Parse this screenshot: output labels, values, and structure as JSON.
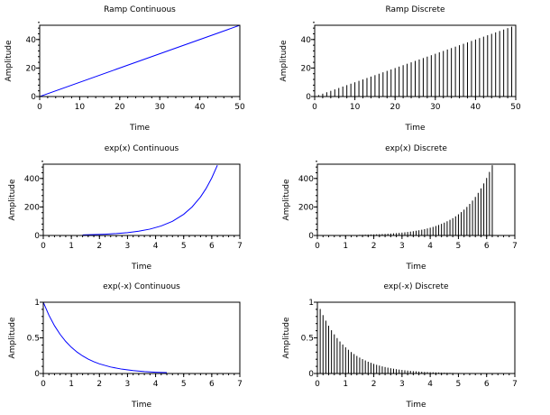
{
  "chart_data": [
    {
      "type": "line",
      "title": "Ramp Continuous",
      "xlabel": "Time",
      "ylabel": "Amplitude",
      "xlim": [
        0,
        50
      ],
      "ylim": [
        0,
        50
      ],
      "xticks": [
        0,
        10,
        20,
        30,
        40,
        50
      ],
      "yticks": [
        0,
        20,
        40
      ],
      "minor_x_step": 2,
      "minor_y_step": 4,
      "grid": false,
      "series": [
        {
          "color": "#0000ff",
          "x": [
            0,
            50
          ],
          "y": [
            0,
            50
          ]
        }
      ]
    },
    {
      "type": "stem",
      "title": "Ramp Discrete",
      "xlabel": "Time",
      "ylabel": "Amplitude",
      "xlim": [
        0,
        50
      ],
      "ylim": [
        0,
        50
      ],
      "xticks": [
        0,
        10,
        20,
        30,
        40,
        50
      ],
      "yticks": [
        0,
        20,
        40
      ],
      "minor_x_step": 2,
      "minor_y_step": 4,
      "grid": false,
      "series": [
        {
          "color": "#000000",
          "x": [
            0,
            1,
            2,
            3,
            4,
            5,
            6,
            7,
            8,
            9,
            10,
            11,
            12,
            13,
            14,
            15,
            16,
            17,
            18,
            19,
            20,
            21,
            22,
            23,
            24,
            25,
            26,
            27,
            28,
            29,
            30,
            31,
            32,
            33,
            34,
            35,
            36,
            37,
            38,
            39,
            40,
            41,
            42,
            43,
            44,
            45,
            46,
            47,
            48,
            49,
            50
          ],
          "y": [
            0,
            1,
            2,
            3,
            4,
            5,
            6,
            7,
            8,
            9,
            10,
            11,
            12,
            13,
            14,
            15,
            16,
            17,
            18,
            19,
            20,
            21,
            22,
            23,
            24,
            25,
            26,
            27,
            28,
            29,
            30,
            31,
            32,
            33,
            34,
            35,
            36,
            37,
            38,
            39,
            40,
            41,
            42,
            43,
            44,
            45,
            46,
            47,
            48,
            49,
            50
          ]
        }
      ]
    },
    {
      "type": "line",
      "title": "exp(x) Continuous",
      "xlabel": "Time",
      "ylabel": "Amplitude",
      "xlim": [
        0,
        7
      ],
      "ylim": [
        0,
        500
      ],
      "xticks": [
        0,
        1,
        2,
        3,
        4,
        5,
        6,
        7
      ],
      "yticks": [
        0,
        200,
        400
      ],
      "minor_x_step": 0.2,
      "minor_y_step": 40,
      "grid": false,
      "series": [
        {
          "color": "#0000ff",
          "x": [
            1.4,
            1.8,
            2.2,
            2.6,
            3.0,
            3.4,
            3.8,
            4.2,
            4.6,
            5.0,
            5.3,
            5.6,
            5.8,
            6.0,
            6.2
          ],
          "y": [
            4.1,
            6.0,
            9.0,
            13.5,
            20.1,
            30.0,
            44.7,
            66.7,
            99.5,
            148.4,
            200.3,
            270.4,
            330.3,
            403.4,
            492.7
          ]
        }
      ]
    },
    {
      "type": "stem",
      "title": "exp(x) Discrete",
      "xlabel": "Time",
      "ylabel": "Amplitude",
      "xlim": [
        0,
        7
      ],
      "ylim": [
        0,
        500
      ],
      "xticks": [
        0,
        1,
        2,
        3,
        4,
        5,
        6,
        7
      ],
      "yticks": [
        0,
        200,
        400
      ],
      "minor_x_step": 0.2,
      "minor_y_step": 40,
      "grid": false,
      "series": [
        {
          "color": "#000000",
          "x": [
            1.5,
            1.6,
            1.7,
            1.8,
            1.9,
            2.0,
            2.1,
            2.2,
            2.3,
            2.4,
            2.5,
            2.6,
            2.7,
            2.8,
            2.9,
            3.0,
            3.1,
            3.2,
            3.3,
            3.4,
            3.5,
            3.6,
            3.7,
            3.8,
            3.9,
            4.0,
            4.1,
            4.2,
            4.3,
            4.4,
            4.5,
            4.6,
            4.7,
            4.8,
            4.9,
            5.0,
            5.1,
            5.2,
            5.3,
            5.4,
            5.5,
            5.6,
            5.7,
            5.8,
            5.9,
            6.0,
            6.1,
            6.2
          ],
          "y": [
            4.5,
            5.0,
            5.5,
            6.0,
            6.7,
            7.4,
            8.2,
            9.0,
            10.0,
            11.0,
            12.2,
            13.5,
            14.9,
            16.4,
            18.2,
            20.1,
            22.2,
            24.5,
            27.1,
            30.0,
            33.1,
            36.6,
            40.4,
            44.7,
            49.4,
            54.6,
            60.3,
            66.7,
            73.7,
            81.5,
            90.0,
            99.5,
            110.0,
            121.5,
            134.3,
            148.4,
            164.0,
            181.3,
            200.3,
            221.4,
            244.7,
            270.4,
            298.9,
            330.3,
            365.0,
            403.4,
            445.9,
            492.7
          ]
        }
      ]
    },
    {
      "type": "line",
      "title": "exp(-x) Continuous",
      "xlabel": "Time",
      "ylabel": "Amplitude",
      "xlim": [
        0,
        7
      ],
      "ylim": [
        0,
        1
      ],
      "xticks": [
        0,
        1,
        2,
        3,
        4,
        5,
        6,
        7
      ],
      "yticks": [
        0,
        0.5,
        1
      ],
      "minor_x_step": 0.2,
      "minor_y_step": 0.1,
      "grid": false,
      "series": [
        {
          "color": "#0000ff",
          "x": [
            0,
            0.2,
            0.4,
            0.6,
            0.8,
            1.0,
            1.2,
            1.4,
            1.6,
            1.8,
            2.0,
            2.4,
            2.8,
            3.2,
            3.6,
            4.0,
            4.4
          ],
          "y": [
            1.0,
            0.819,
            0.67,
            0.549,
            0.449,
            0.368,
            0.301,
            0.247,
            0.202,
            0.165,
            0.135,
            0.091,
            0.061,
            0.041,
            0.027,
            0.018,
            0.012
          ]
        }
      ]
    },
    {
      "type": "stem",
      "title": "exp(-x) Discrete",
      "xlabel": "Time",
      "ylabel": "Amplitude",
      "xlim": [
        0,
        7
      ],
      "ylim": [
        0,
        1
      ],
      "xticks": [
        0,
        1,
        2,
        3,
        4,
        5,
        6,
        7
      ],
      "yticks": [
        0,
        0.5,
        1
      ],
      "minor_x_step": 0.2,
      "minor_y_step": 0.1,
      "grid": false,
      "series": [
        {
          "color": "#000000",
          "x": [
            0.1,
            0.2,
            0.3,
            0.4,
            0.5,
            0.6,
            0.7,
            0.8,
            0.9,
            1.0,
            1.1,
            1.2,
            1.3,
            1.4,
            1.5,
            1.6,
            1.7,
            1.8,
            1.9,
            2.0,
            2.1,
            2.2,
            2.3,
            2.4,
            2.5,
            2.6,
            2.7,
            2.8,
            2.9,
            3.0,
            3.1,
            3.2,
            3.3,
            3.4,
            3.5,
            3.6,
            3.7,
            3.8,
            3.9,
            4.0,
            4.1,
            4.2,
            4.3,
            4.4,
            4.5,
            4.6,
            4.7,
            4.8
          ],
          "y": [
            0.905,
            0.819,
            0.741,
            0.67,
            0.607,
            0.549,
            0.497,
            0.449,
            0.407,
            0.368,
            0.333,
            0.301,
            0.273,
            0.247,
            0.223,
            0.202,
            0.183,
            0.165,
            0.15,
            0.135,
            0.122,
            0.111,
            0.1,
            0.091,
            0.082,
            0.074,
            0.067,
            0.061,
            0.055,
            0.05,
            0.045,
            0.041,
            0.037,
            0.033,
            0.03,
            0.027,
            0.025,
            0.022,
            0.02,
            0.018,
            0.017,
            0.015,
            0.014,
            0.012,
            0.011,
            0.01,
            0.009,
            0.008
          ]
        }
      ]
    }
  ]
}
